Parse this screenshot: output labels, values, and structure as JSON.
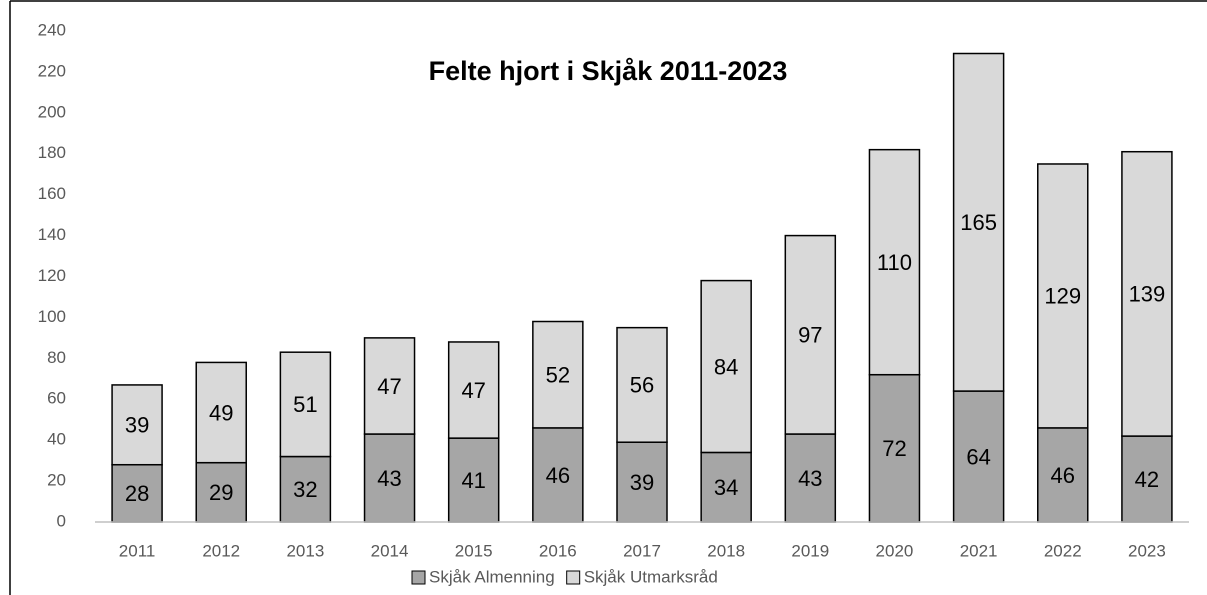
{
  "chart_data": {
    "type": "stacked_bar",
    "title": "Felte hjort i Skjåk 2011-2023",
    "categories": [
      "2011",
      "2012",
      "2013",
      "2014",
      "2015",
      "2016",
      "2017",
      "2018",
      "2019",
      "2020",
      "2021",
      "2022",
      "2023"
    ],
    "series": [
      {
        "name": "Skjåk Almenning",
        "color": "#a6a6a6",
        "values": [
          28,
          29,
          32,
          43,
          41,
          46,
          39,
          34,
          43,
          72,
          64,
          46,
          42
        ]
      },
      {
        "name": "Skjåk Utmarksråd",
        "color": "#d9d9d9",
        "values": [
          39,
          49,
          51,
          47,
          47,
          52,
          56,
          84,
          97,
          110,
          165,
          129,
          139
        ]
      }
    ],
    "ylim": [
      0,
      240
    ],
    "yticks": [
      0,
      20,
      40,
      60,
      80,
      100,
      120,
      140,
      160,
      180,
      200,
      220,
      240
    ],
    "grid": false,
    "legend": "bottom"
  }
}
